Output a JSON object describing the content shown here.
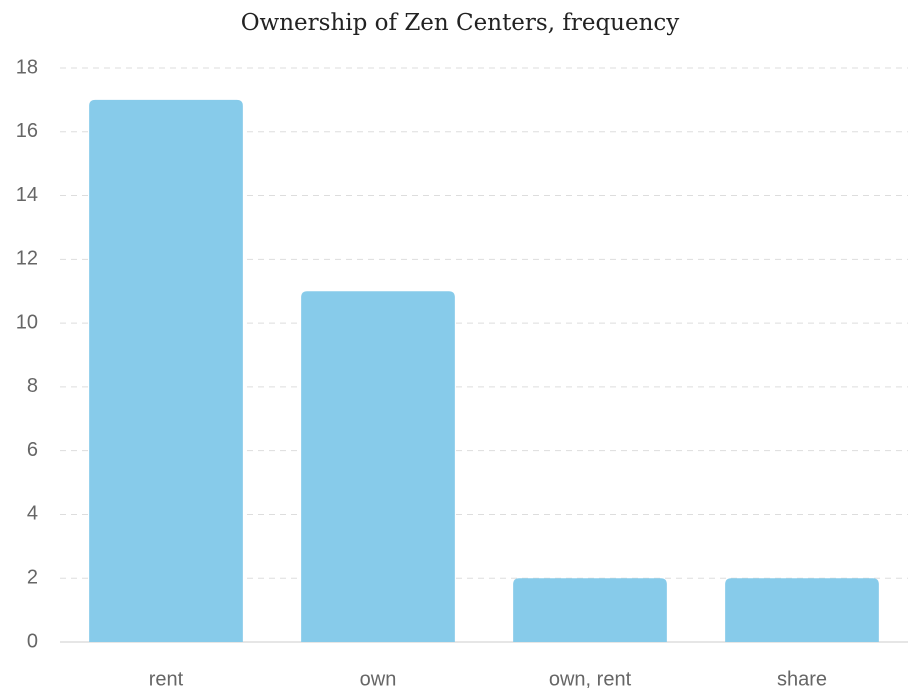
{
  "chart_data": {
    "type": "bar",
    "title": "Ownership of Zen Centers, frequency",
    "categories": [
      "rent",
      "own",
      "own, rent",
      "share"
    ],
    "values": [
      17,
      11,
      2,
      2
    ],
    "color": "#87cbea",
    "ylim": [
      0,
      18
    ],
    "yticks": [
      0,
      2,
      4,
      6,
      8,
      10,
      12,
      14,
      16,
      18
    ],
    "grid": true
  }
}
